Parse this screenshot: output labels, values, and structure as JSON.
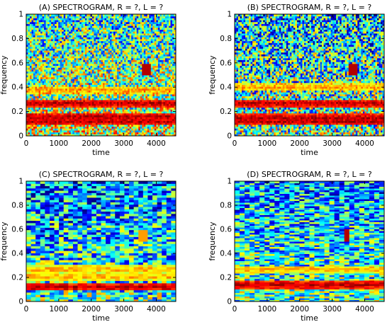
{
  "chart_data": [
    {
      "type": "heatmap",
      "title": "(A) SPECTROGRAM, R = ?, L = ?",
      "xlabel": "time",
      "ylabel": "frequency",
      "xlim": [
        0,
        4600
      ],
      "ylim": [
        0,
        1
      ],
      "xticks": [
        "0",
        "1000",
        "2000",
        "3000",
        "4000"
      ],
      "yticks": [
        "0",
        "0.2",
        "0.4",
        "0.6",
        "0.8",
        "1"
      ],
      "features": [
        {
          "kind": "band",
          "frequency": 0.12,
          "strength": "high"
        },
        {
          "kind": "band",
          "frequency": 0.16,
          "strength": "high"
        },
        {
          "kind": "band",
          "frequency": 0.27,
          "strength": "high"
        },
        {
          "kind": "band",
          "frequency": 0.38,
          "strength": "medium"
        },
        {
          "kind": "burst",
          "time": 3700,
          "frequency": 0.55,
          "strength": "high"
        }
      ]
    },
    {
      "type": "heatmap",
      "title": "(B) SPECTROGRAM, R = ?, L = ?",
      "xlabel": "time",
      "ylabel": "frequency",
      "xlim": [
        0,
        4600
      ],
      "ylim": [
        0,
        1
      ],
      "xticks": [
        "0",
        "1000",
        "2000",
        "3000",
        "4000"
      ],
      "yticks": [
        "0",
        "0.2",
        "0.4",
        "0.6",
        "0.8",
        "1"
      ],
      "features": [
        {
          "kind": "band",
          "frequency": 0.12,
          "strength": "high"
        },
        {
          "kind": "band",
          "frequency": 0.15,
          "strength": "high"
        },
        {
          "kind": "band",
          "frequency": 0.27,
          "strength": "high"
        },
        {
          "kind": "band",
          "frequency": 0.4,
          "strength": "medium"
        },
        {
          "kind": "burst",
          "time": 3650,
          "frequency": 0.55,
          "strength": "high"
        }
      ]
    },
    {
      "type": "heatmap",
      "title": "(C) SPECTROGRAM, R = ?, L = ?",
      "xlabel": "time",
      "ylabel": "frequency",
      "xlim": [
        0,
        4600
      ],
      "ylim": [
        0,
        1
      ],
      "xticks": [
        "0",
        "1000",
        "2000",
        "3000",
        "4000"
      ],
      "yticks": [
        "0",
        "0.2",
        "0.4",
        "0.6",
        "0.8",
        "1"
      ],
      "features": [
        {
          "kind": "band",
          "frequency": 0.12,
          "strength": "high"
        },
        {
          "kind": "band",
          "frequency": 0.21,
          "strength": "medium"
        },
        {
          "kind": "band",
          "frequency": 0.27,
          "strength": "medium"
        },
        {
          "kind": "burst",
          "time": 3650,
          "frequency": 0.55,
          "strength": "medium"
        }
      ]
    },
    {
      "type": "heatmap",
      "title": "(D) SPECTROGRAM, R = ?, L = ?",
      "xlabel": "time",
      "ylabel": "frequency",
      "xlim": [
        0,
        4600
      ],
      "ylim": [
        0,
        1
      ],
      "xticks": [
        "0",
        "1000",
        "2000",
        "3000",
        "4000"
      ],
      "yticks": [
        "0",
        "0.2",
        "0.4",
        "0.6",
        "0.8",
        "1"
      ],
      "features": [
        {
          "kind": "band",
          "frequency": 0.14,
          "strength": "high"
        },
        {
          "kind": "band",
          "frequency": 0.27,
          "strength": "medium"
        },
        {
          "kind": "burst",
          "time": 3450,
          "frequency": 0.55,
          "strength": "high"
        }
      ]
    }
  ]
}
